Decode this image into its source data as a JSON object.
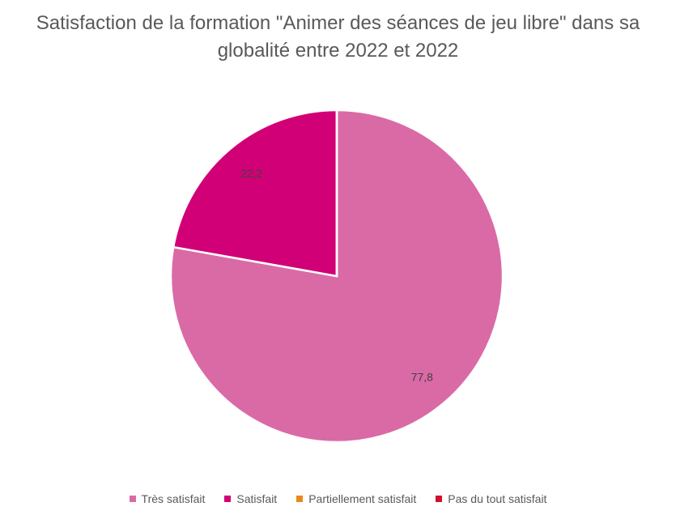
{
  "chart_data": {
    "type": "pie",
    "title": "Satisfaction de la formation \"Animer des séances de jeu libre\" dans sa globalité entre 2022 et 2022",
    "categories": [
      "Très satisfait",
      "Satisfait",
      "Partiellement satisfait",
      "Pas du tout satisfait"
    ],
    "values": [
      77.8,
      22.2,
      0,
      0
    ],
    "value_labels": [
      "77,8",
      "22,2",
      null,
      null
    ],
    "colors": [
      "#da6aa6",
      "#d10076",
      "#e8891a",
      "#d0102c"
    ],
    "legend": "bottom"
  }
}
